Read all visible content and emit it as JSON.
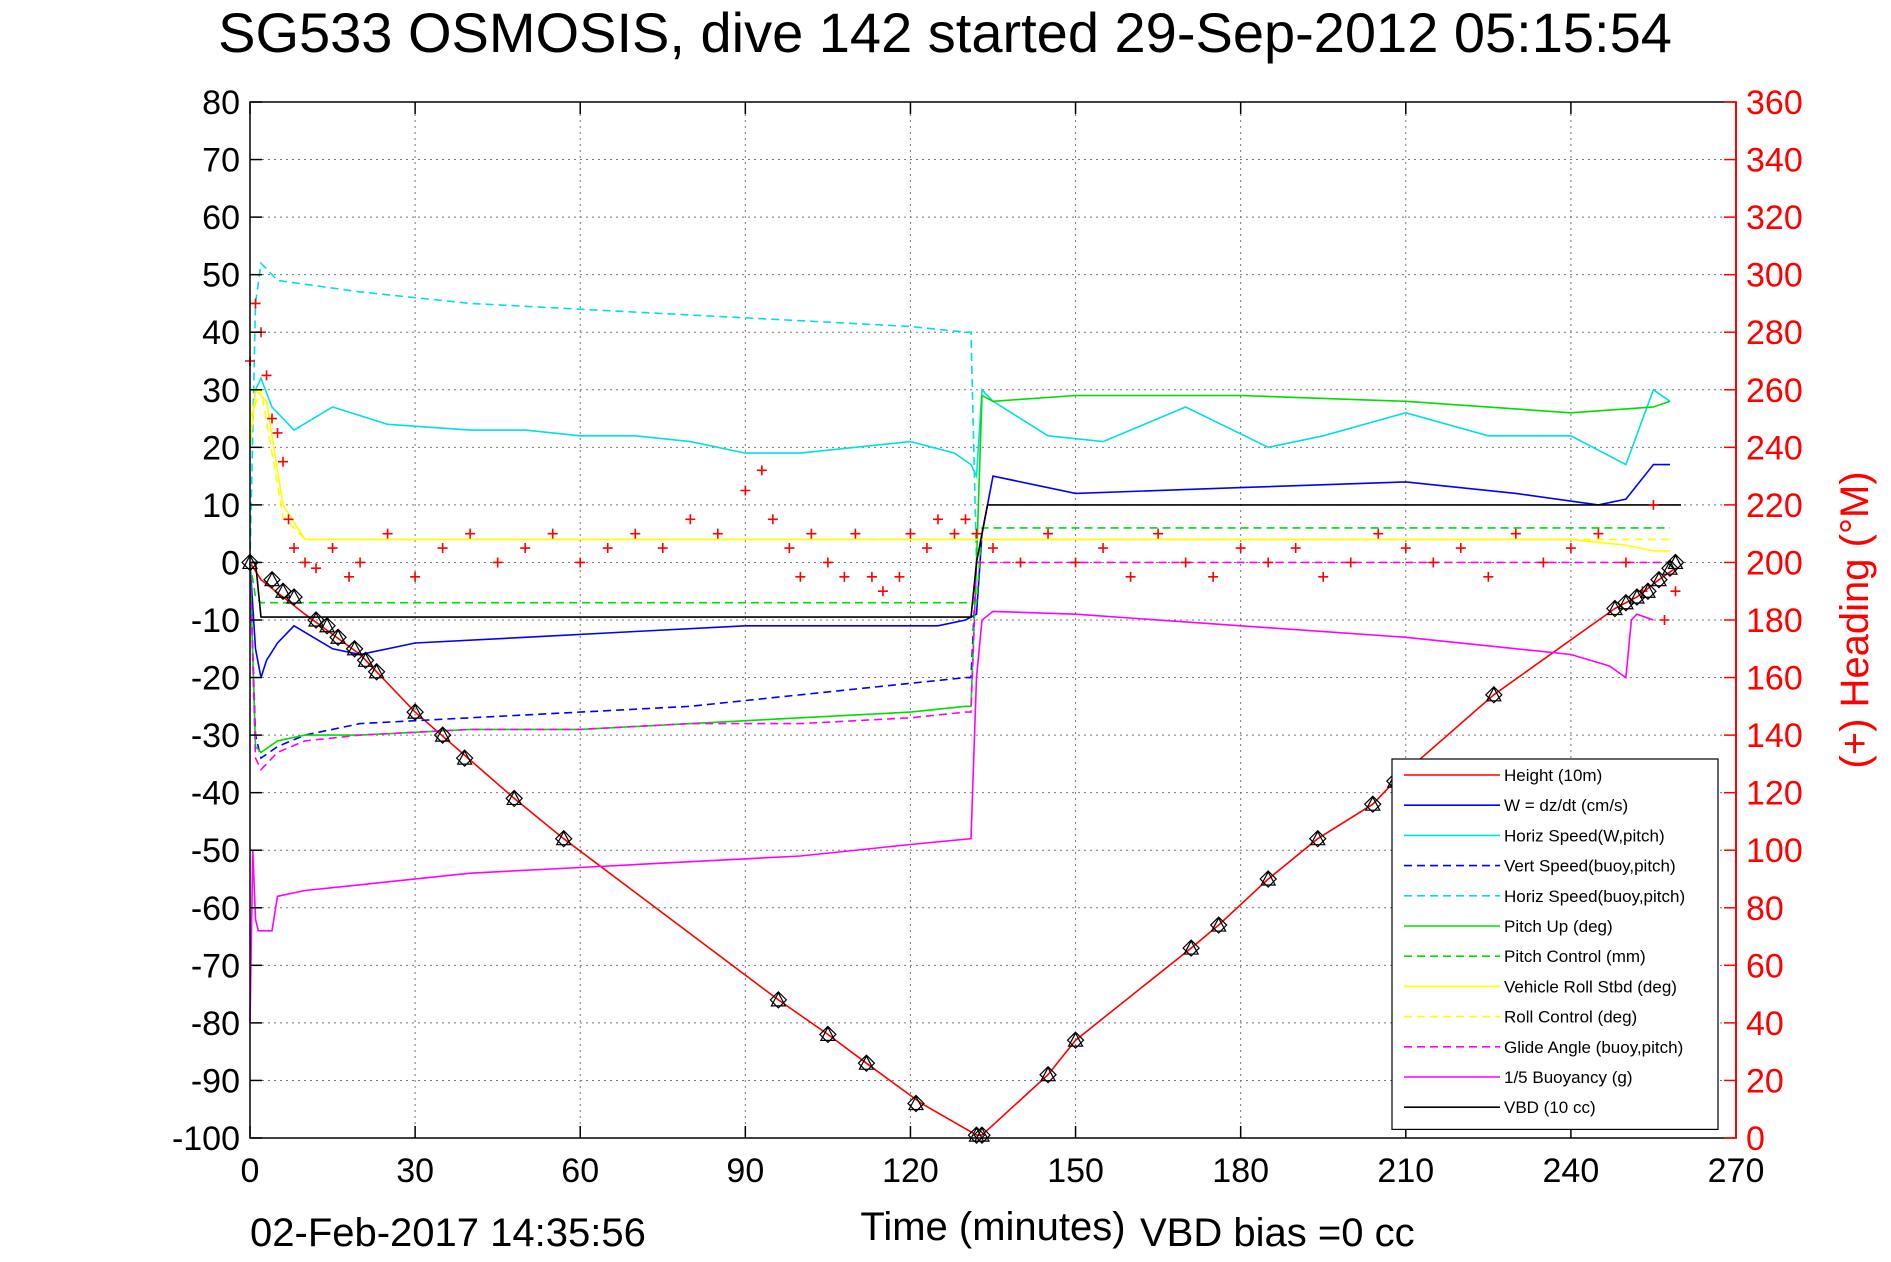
{
  "chart_data": {
    "type": "line",
    "title": "SG533 OSMOSIS, dive 142 started 29-Sep-2012 05:15:54",
    "xlabel": "Time (minutes)",
    "ylabel_right": "(+) Heading (°M)",
    "xlim": [
      0,
      270
    ],
    "ylim": [
      -100,
      80
    ],
    "ylim_right": [
      0,
      360
    ],
    "x_ticks": [
      "0",
      "30",
      "60",
      "90",
      "120",
      "150",
      "180",
      "210",
      "240",
      "270"
    ],
    "y_ticks": [
      "80",
      "70",
      "60",
      "50",
      "40",
      "30",
      "20",
      "10",
      "0",
      "-10",
      "-20",
      "-30",
      "-40",
      "-50",
      "-60",
      "-70",
      "-80",
      "-90",
      "-100"
    ],
    "y_ticks_right": [
      "360",
      "340",
      "320",
      "300",
      "280",
      "260",
      "240",
      "220",
      "200",
      "180",
      "160",
      "140",
      "120",
      "100",
      "80",
      "60",
      "40",
      "20",
      "0"
    ],
    "grid": true,
    "legend_position": "bottom-right",
    "series": [
      {
        "name": "Height (10m)",
        "color": "#ff0000",
        "dash": "solid",
        "x": [
          0,
          2,
          10,
          20,
          30,
          48,
          57,
          96,
          105,
          112,
          122,
          132,
          133,
          145,
          150,
          171,
          176,
          185,
          194,
          204,
          208,
          226,
          248,
          252,
          256,
          259
        ],
        "y": [
          0,
          -3,
          -9,
          -16,
          -26,
          -41,
          -48,
          -76,
          -82,
          -87,
          -94,
          -99.5,
          -99.5,
          -89,
          -83,
          -67,
          -63,
          -55,
          -48,
          -42,
          -38,
          -23,
          -8,
          -6,
          -3,
          -1
        ]
      },
      {
        "name": "W = dz/dt (cm/s)",
        "color": "#0000ff",
        "dash": "solid",
        "x": [
          0,
          1,
          2,
          3,
          5,
          8,
          15,
          20,
          30,
          50,
          70,
          90,
          110,
          125,
          130,
          132,
          133,
          135,
          150,
          180,
          210,
          230,
          245,
          250,
          255,
          258
        ],
        "y": [
          0,
          -15,
          -20,
          -17,
          -14,
          -11,
          -15,
          -16,
          -14,
          -13,
          -12,
          -11,
          -11,
          -11,
          -10,
          -9,
          5,
          15,
          12,
          13,
          14,
          12,
          10,
          11,
          17,
          17
        ]
      },
      {
        "name": "Horiz Speed(W,pitch)",
        "color": "#00e0e0",
        "dash": "solid",
        "x": [
          0,
          1,
          2,
          4,
          8,
          15,
          25,
          40,
          50,
          60,
          70,
          80,
          90,
          100,
          110,
          120,
          128,
          131,
          132,
          133,
          135,
          145,
          155,
          170,
          185,
          195,
          210,
          225,
          240,
          250,
          255,
          258
        ],
        "y": [
          20,
          30,
          32,
          27,
          23,
          27,
          24,
          23,
          23,
          22,
          22,
          21,
          19,
          19,
          20,
          21,
          19,
          17,
          15,
          30,
          28,
          22,
          21,
          27,
          20,
          22,
          26,
          22,
          22,
          17,
          30,
          28
        ]
      },
      {
        "name": "Vert Speed(buoy,pitch)",
        "color": "#0000ff",
        "dash": "dashed",
        "x": [
          0,
          1,
          2,
          5,
          10,
          20,
          40,
          60,
          80,
          100,
          120,
          130,
          131,
          132
        ],
        "y": [
          0,
          -30,
          -34,
          -32,
          -30,
          -28,
          -27,
          -26,
          -25,
          -23,
          -21,
          -20,
          -20,
          0
        ]
      },
      {
        "name": "Horiz Speed(buoy,pitch)",
        "color": "#00e0e0",
        "dash": "dashed",
        "x": [
          0,
          1,
          2,
          5,
          20,
          40,
          60,
          80,
          100,
          120,
          130,
          131,
          132
        ],
        "y": [
          0,
          45,
          52,
          49,
          47,
          45,
          44,
          43,
          42,
          41,
          40,
          40,
          0
        ]
      },
      {
        "name": "Pitch Up (deg)",
        "color": "#00dd00",
        "dash": "solid",
        "x": [
          0,
          1,
          2,
          5,
          10,
          20,
          40,
          60,
          80,
          100,
          120,
          130,
          131,
          132,
          133,
          135,
          150,
          175,
          180,
          210,
          240,
          255,
          258
        ],
        "y": [
          0,
          -32,
          -33,
          -31,
          -30,
          -30,
          -29,
          -29,
          -28,
          -27,
          -26,
          -25,
          -25,
          0,
          29,
          28,
          29,
          29,
          29,
          28,
          26,
          27,
          28
        ]
      },
      {
        "name": "Pitch Control (mm)",
        "color": "#00dd00",
        "dash": "dashed",
        "x": [
          0,
          1,
          2,
          132,
          133,
          258
        ],
        "y": [
          0,
          -6,
          -7,
          -7,
          6,
          6
        ]
      },
      {
        "name": "Vehicle Roll Stbd (deg)",
        "color": "#ffff00",
        "dash": "solid",
        "x": [
          0,
          1,
          3,
          6,
          10,
          40,
          90,
          120,
          130,
          133,
          150,
          200,
          240,
          250,
          255,
          258
        ],
        "y": [
          20,
          30,
          28,
          10,
          4,
          4,
          4,
          4,
          4,
          4,
          4,
          4,
          4,
          3,
          2,
          2
        ]
      },
      {
        "name": "Roll Control (deg)",
        "color": "#ffff00",
        "dash": "dashed",
        "x": [
          0,
          2,
          6,
          10,
          258
        ],
        "y": [
          25,
          30,
          8,
          4,
          4
        ]
      },
      {
        "name": "Glide Angle (buoy,pitch)",
        "color": "#ff00ff",
        "dash": "dashed",
        "x": [
          0,
          1,
          2,
          5,
          10,
          20,
          40,
          60,
          80,
          100,
          120,
          130,
          131,
          132,
          133,
          258
        ],
        "y": [
          0,
          -34,
          -36,
          -33,
          -31,
          -30,
          -29,
          -29,
          -28,
          -28,
          -27,
          -26,
          -26,
          0,
          0,
          0
        ]
      },
      {
        "name": "1/5 Buoyancy (g)",
        "color": "#ff00ff",
        "dash": "solid",
        "x": [
          0,
          0.5,
          1,
          1.5,
          4,
          5,
          10,
          20,
          40,
          60,
          80,
          100,
          120,
          131,
          132,
          133,
          135,
          150,
          180,
          210,
          240,
          247,
          250,
          251,
          252,
          255
        ],
        "y": [
          -80,
          -50,
          -62,
          -64,
          -64,
          -58,
          -57,
          -56,
          -54,
          -53,
          -52,
          -51,
          -49,
          -48,
          -20,
          -10,
          -8.5,
          -9,
          -11,
          -13,
          -16,
          -18,
          -20,
          -10,
          -9,
          -10
        ]
      },
      {
        "name": "VBD (10 cc)",
        "color": "#000000",
        "dash": "solid",
        "x": [
          0,
          1,
          2,
          131,
          132,
          134,
          135,
          260
        ],
        "y": [
          0,
          0,
          -9.5,
          -9.5,
          0,
          10,
          10,
          10
        ]
      }
    ],
    "heading": {
      "name": "Heading",
      "color": "#ff0000",
      "marker": "+",
      "axis": "right",
      "x": [
        0,
        1,
        2,
        3,
        4,
        5,
        6,
        7,
        8,
        10,
        12,
        15,
        18,
        20,
        25,
        30,
        35,
        40,
        45,
        50,
        55,
        60,
        65,
        70,
        75,
        80,
        85,
        90,
        93,
        95,
        98,
        100,
        102,
        105,
        108,
        110,
        113,
        115,
        118,
        120,
        123,
        125,
        128,
        130,
        132,
        135,
        140,
        145,
        150,
        155,
        160,
        165,
        170,
        175,
        180,
        185,
        190,
        195,
        200,
        205,
        210,
        215,
        220,
        225,
        230,
        235,
        240,
        245,
        250,
        253,
        255,
        257,
        259
      ],
      "y": [
        270,
        290,
        280,
        265,
        250,
        245,
        235,
        215,
        205,
        200,
        198,
        205,
        195,
        200,
        210,
        195,
        205,
        210,
        200,
        205,
        210,
        200,
        205,
        210,
        205,
        215,
        210,
        225,
        232,
        215,
        205,
        195,
        210,
        200,
        195,
        210,
        195,
        190,
        195,
        210,
        205,
        215,
        210,
        215,
        210,
        205,
        200,
        210,
        200,
        205,
        195,
        210,
        200,
        195,
        205,
        200,
        205,
        195,
        200,
        210,
        205,
        200,
        205,
        195,
        210,
        200,
        205,
        210,
        200,
        190,
        220,
        180,
        190
      ]
    },
    "height_markers": {
      "marker": "diamond-triangle",
      "color": "#000000",
      "x": [
        0,
        4,
        6,
        8,
        12,
        14,
        16,
        19,
        21,
        23,
        30,
        35,
        39,
        48,
        57,
        96,
        105,
        112,
        121,
        132,
        133,
        145,
        150,
        171,
        176,
        185,
        194,
        204,
        208,
        226,
        248,
        250,
        252,
        254,
        256,
        258,
        259
      ],
      "y": [
        0,
        -3,
        -5,
        -6,
        -10,
        -11,
        -13,
        -15,
        -17,
        -19,
        -26,
        -30,
        -34,
        -41,
        -48,
        -76,
        -82,
        -87,
        -94,
        -99.5,
        -99.5,
        -89,
        -83,
        -67,
        -63,
        -55,
        -48,
        -42,
        -38,
        -23,
        -8,
        -7,
        -6,
        -5,
        -3,
        -1,
        0
      ]
    },
    "footer_left": "02-Feb-2017 14:35:56",
    "footer_right": "VBD bias =0 cc"
  }
}
